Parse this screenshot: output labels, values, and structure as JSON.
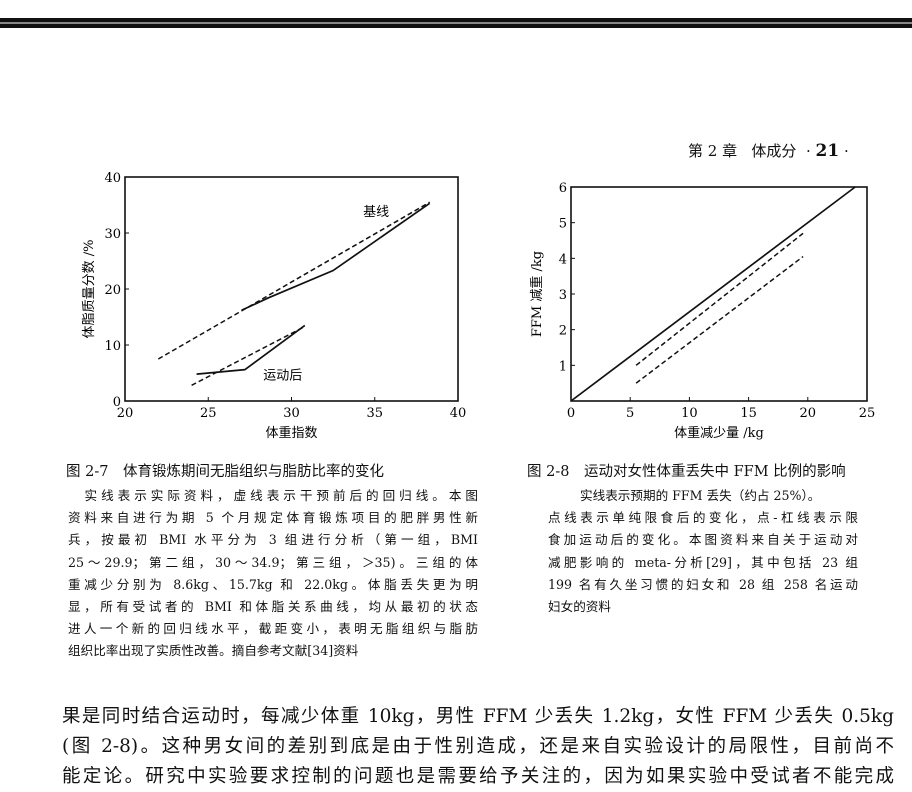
{
  "running_head": {
    "chapter": "第 2 章",
    "title": "体成分",
    "page": "21"
  },
  "figure_2_7": {
    "caption_title": "图 2-7　体育锻炼期间无脂组织与脂肪比率的变化",
    "caption_lines": [
      "　实线表示实际资料，虚线表示干预前后的回归线。本图",
      "资料来自进行为期 5 个月规定体育锻炼项目的肥胖男性新",
      "兵，按最初 BMI 水平分为 3 组进行分析（第一组，BMI",
      "25～29.9；第二组，30～34.9；第三组，＞35)。三组的体",
      "重减少分别为 8.6kg、15.7kg 和 22.0kg。体脂丢失更为明",
      "显，所有受试者的 BMI 和体脂关系曲线，均从最初的状态",
      "进人一个新的回归线水平，截距变小，表明无脂组织与脂肪",
      "组织比率出现了实质性改善。摘自参考文献[34]资料"
    ]
  },
  "figure_2_8": {
    "caption_title": "图 2-8　运动对女性体重丢失中 FFM 比例的影响",
    "caption_lines": [
      "实线表示预期的 FFM 丢失（约占 25%）。",
      "点线表示单纯限食后的变化，点-杠线表示限",
      "食加运动后的变化。本图资料来自关于运动对",
      "减肥影响的 meta-分析[29]，其中包括 23 组",
      "199 名有久坐习惯的妇女和 28 组 258 名运动",
      "妇女的资料"
    ]
  },
  "body_lines": [
    "果是同时结合运动时，每减少体重 10kg，男性 FFM 少丢失 1.2kg，女性 FFM 少丢失 0.5kg",
    "(图 2-8)。这种男女间的差别到底是由于性别造成，还是来自实验设计的局限性，目前尚不",
    "能定论。研究中实验要求控制的问题也是需要给予关注的，因为如果实验中受试者不能完成"
  ],
  "chart_data": [
    {
      "type": "line",
      "title": "",
      "xlabel": "体重指数",
      "ylabel": "体脂质量分数 /%",
      "xlim": [
        20,
        40
      ],
      "ylim": [
        0,
        40
      ],
      "xticks": [
        "20",
        "25",
        "30",
        "35",
        "40"
      ],
      "yticks": [
        "0",
        "10",
        "20",
        "30",
        "40"
      ],
      "annotations": [
        {
          "text": "基线",
          "x": 34.3,
          "y": 33
        },
        {
          "text": "运动后",
          "x": 28.3,
          "y": 3.8
        }
      ],
      "series": [
        {
          "name": "基线 实际",
          "style": "solid",
          "points": [
            [
              27,
              16.2
            ],
            [
              28.6,
              18.4
            ],
            [
              32.5,
              23.3
            ],
            [
              38.3,
              35.3
            ]
          ]
        },
        {
          "name": "基线 回归",
          "style": "dashed",
          "points": [
            [
              22,
              7.5
            ],
            [
              38.3,
              35.5
            ]
          ]
        },
        {
          "name": "运动后 实际",
          "style": "solid",
          "points": [
            [
              24.3,
              4.8
            ],
            [
              27.2,
              5.6
            ],
            [
              30.8,
              13.5
            ]
          ]
        },
        {
          "name": "运动后 回归",
          "style": "dashed",
          "points": [
            [
              24,
              2.8
            ],
            [
              30.8,
              13.3
            ]
          ]
        }
      ]
    },
    {
      "type": "line",
      "title": "",
      "xlabel": "体重减少量 /kg",
      "ylabel": "FFM 减重 /kg",
      "xlim": [
        0,
        25
      ],
      "ylim": [
        0,
        6
      ],
      "xticks": [
        "0",
        "5",
        "10",
        "15",
        "20",
        "25"
      ],
      "yticks": [
        "1",
        "2",
        "3",
        "4",
        "5",
        "6"
      ],
      "series": [
        {
          "name": "预期 FFM 丢失",
          "style": "solid",
          "points": [
            [
              0,
              0
            ],
            [
              24,
              6
            ]
          ]
        },
        {
          "name": "单纯限食",
          "style": "dashed",
          "points": [
            [
              5.5,
              1.0
            ],
            [
              19.6,
              4.7
            ]
          ]
        },
        {
          "name": "限食加运动",
          "style": "dashed",
          "points": [
            [
              5.5,
              0.5
            ],
            [
              19.6,
              4.05
            ]
          ]
        }
      ]
    }
  ]
}
